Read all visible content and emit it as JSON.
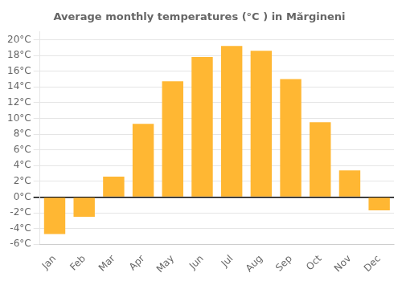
{
  "chart_data": {
    "type": "bar",
    "title": "Average monthly temperatures (°C ) in Mărgineni",
    "categories": [
      "Jan",
      "Feb",
      "Mar",
      "Apr",
      "May",
      "Jun",
      "Jul",
      "Aug",
      "Sep",
      "Oct",
      "Nov",
      "Dec"
    ],
    "values": [
      -4.7,
      -2.5,
      2.6,
      9.3,
      14.7,
      17.8,
      19.2,
      18.6,
      15.0,
      9.5,
      3.4,
      -1.7
    ],
    "color": "#FFB733",
    "ylim": [
      -6,
      21
    ],
    "yticks": [
      {
        "value": -6,
        "label": "-6°C"
      },
      {
        "value": -4,
        "label": "-4°C"
      },
      {
        "value": -2,
        "label": "-2°C"
      },
      {
        "value": 0,
        "label": "0°C"
      },
      {
        "value": 2,
        "label": "2°C"
      },
      {
        "value": 4,
        "label": "4°C"
      },
      {
        "value": 6,
        "label": "6°C"
      },
      {
        "value": 8,
        "label": "8°C"
      },
      {
        "value": 10,
        "label": "10°C"
      },
      {
        "value": 12,
        "label": "12°C"
      },
      {
        "value": 14,
        "label": "14°C"
      },
      {
        "value": 16,
        "label": "16°C"
      },
      {
        "value": 18,
        "label": "18°C"
      },
      {
        "value": 20,
        "label": "20°C"
      }
    ],
    "grid": true
  }
}
